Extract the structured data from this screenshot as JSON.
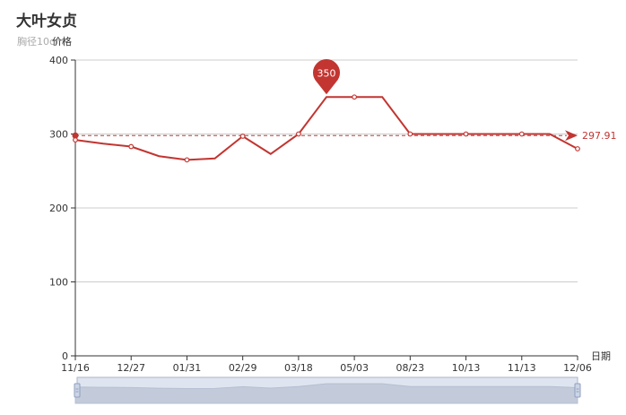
{
  "chart_data": {
    "type": "line",
    "title": "大叶女贞",
    "subtitle": "胸径10cm",
    "xlabel": "日期",
    "ylabel": "",
    "ylim": [
      0,
      400
    ],
    "yticks": [
      0,
      100,
      200,
      300,
      400
    ],
    "grid": true,
    "legend_position": "top-left",
    "series": [
      {
        "name": "价格",
        "color": "#c23531",
        "values": [
          292,
          287,
          283,
          270,
          265,
          267,
          297,
          273,
          300,
          350,
          350,
          350,
          300,
          300,
          300,
          300,
          300,
          300,
          280
        ]
      }
    ],
    "x_tick_labels": [
      "11/16",
      "12/27",
      "01/31",
      "02/29",
      "03/18",
      "05/03",
      "08/23",
      "10/13",
      "11/13",
      "12/06"
    ],
    "mark_point": {
      "label": "350",
      "value": 350,
      "index": 9
    },
    "mark_line": {
      "label": "297.91",
      "value": 297.91
    },
    "data_zoom": {
      "start": 0,
      "end": 100
    }
  }
}
